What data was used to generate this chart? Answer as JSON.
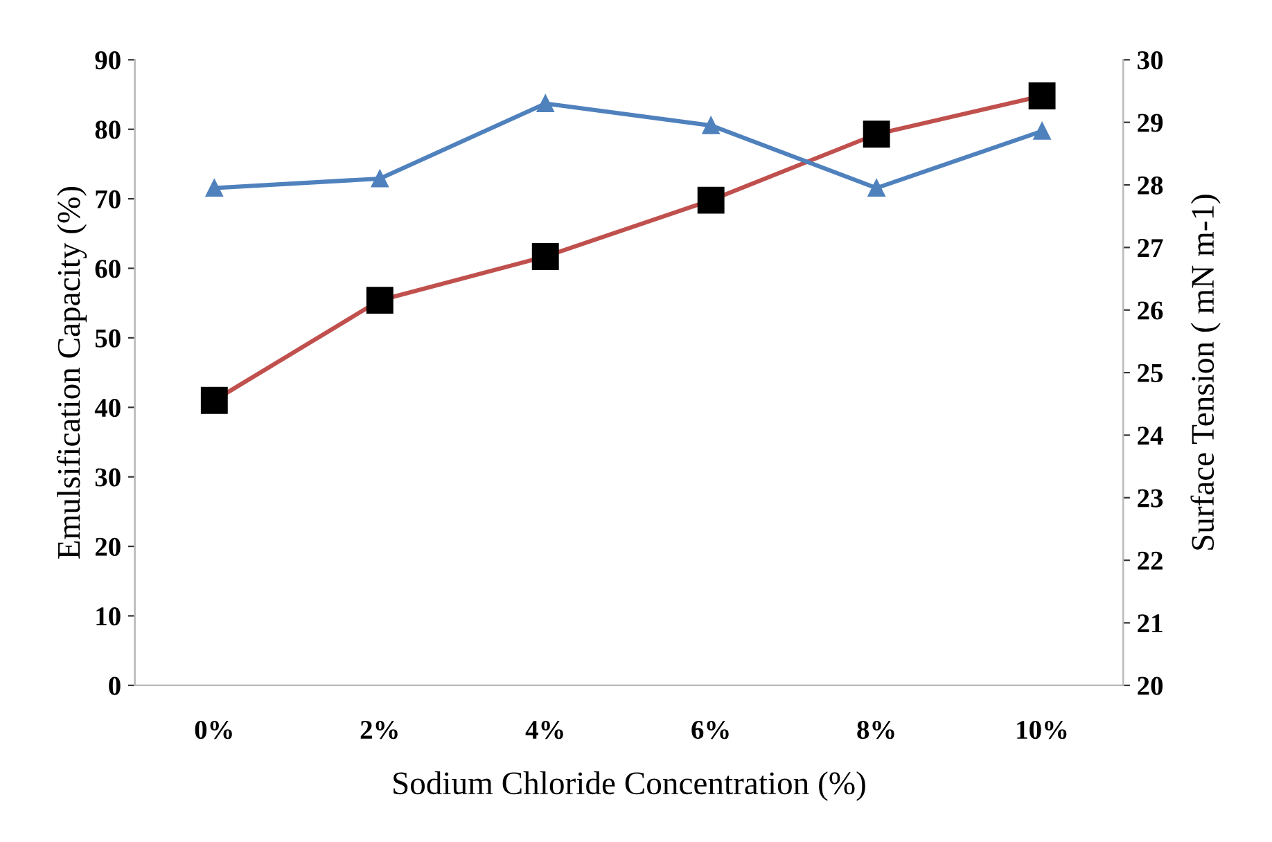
{
  "chart_data": {
    "type": "line",
    "xlabel": "Sodium Chloride Concentration (%)",
    "ylabel": "Emulsification Capacity (%)",
    "y2label": "Surface Tension ( mN m-1)",
    "categories": [
      "0%",
      "2%",
      "4%",
      "6%",
      "8%",
      "10%"
    ],
    "series": [
      {
        "color": "#c0504d",
        "marker": "square",
        "values": [
          41,
          55.4,
          61.7,
          69.8,
          79.3,
          84.8
        ]
      },
      {
        "color": "#4f81bd",
        "marker": "triangle",
        "axis": "y2",
        "values": [
          27.95,
          28.1,
          29.3,
          28.95,
          27.95,
          28.86
        ]
      }
    ],
    "ylim": [
      0,
      90
    ],
    "yticks": [
      0,
      10,
      20,
      30,
      40,
      50,
      60,
      70,
      80,
      90
    ],
    "y2lim": [
      20,
      30
    ],
    "y2ticks": [
      20,
      21,
      22,
      23,
      24,
      25,
      26,
      27,
      28,
      29,
      30
    ],
    "grid": false,
    "legend": false
  }
}
